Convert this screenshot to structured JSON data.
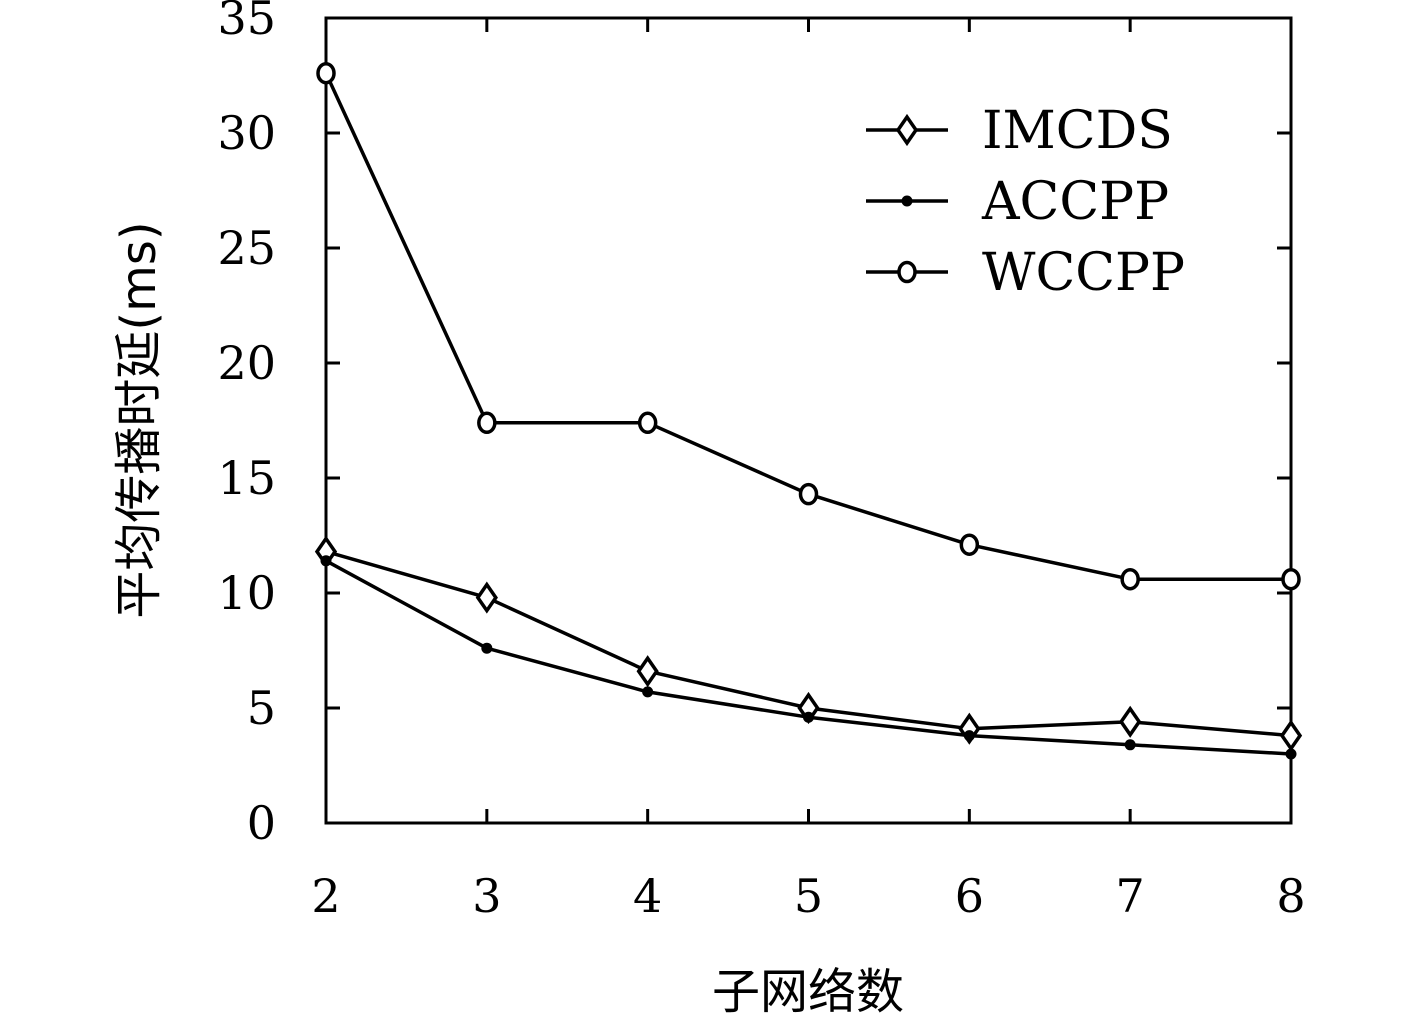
{
  "chart_data": {
    "type": "line",
    "xlabel": "子网络数",
    "ylabel": "平均传播时延(ms)",
    "x": [
      2,
      3,
      4,
      5,
      6,
      7,
      8
    ],
    "xlim": [
      2,
      8
    ],
    "ylim": [
      0,
      35
    ],
    "xticks": [
      "2",
      "3",
      "4",
      "5",
      "6",
      "7",
      "8"
    ],
    "yticks": [
      "0",
      "5",
      "10",
      "15",
      "20",
      "25",
      "30",
      "35"
    ],
    "grid": false,
    "legend_position": "top-right",
    "series": [
      {
        "name": "IMCDS",
        "marker": "diamond",
        "values": [
          11.8,
          9.8,
          6.6,
          5.0,
          4.1,
          4.4,
          3.8
        ]
      },
      {
        "name": "ACCPP",
        "marker": "dot",
        "values": [
          11.4,
          7.6,
          5.7,
          4.6,
          3.8,
          3.4,
          3.0
        ]
      },
      {
        "name": "WCCPP",
        "marker": "circle",
        "values": [
          32.6,
          17.4,
          17.4,
          14.3,
          12.1,
          10.6,
          10.6
        ]
      }
    ],
    "line_color": "#000000"
  }
}
